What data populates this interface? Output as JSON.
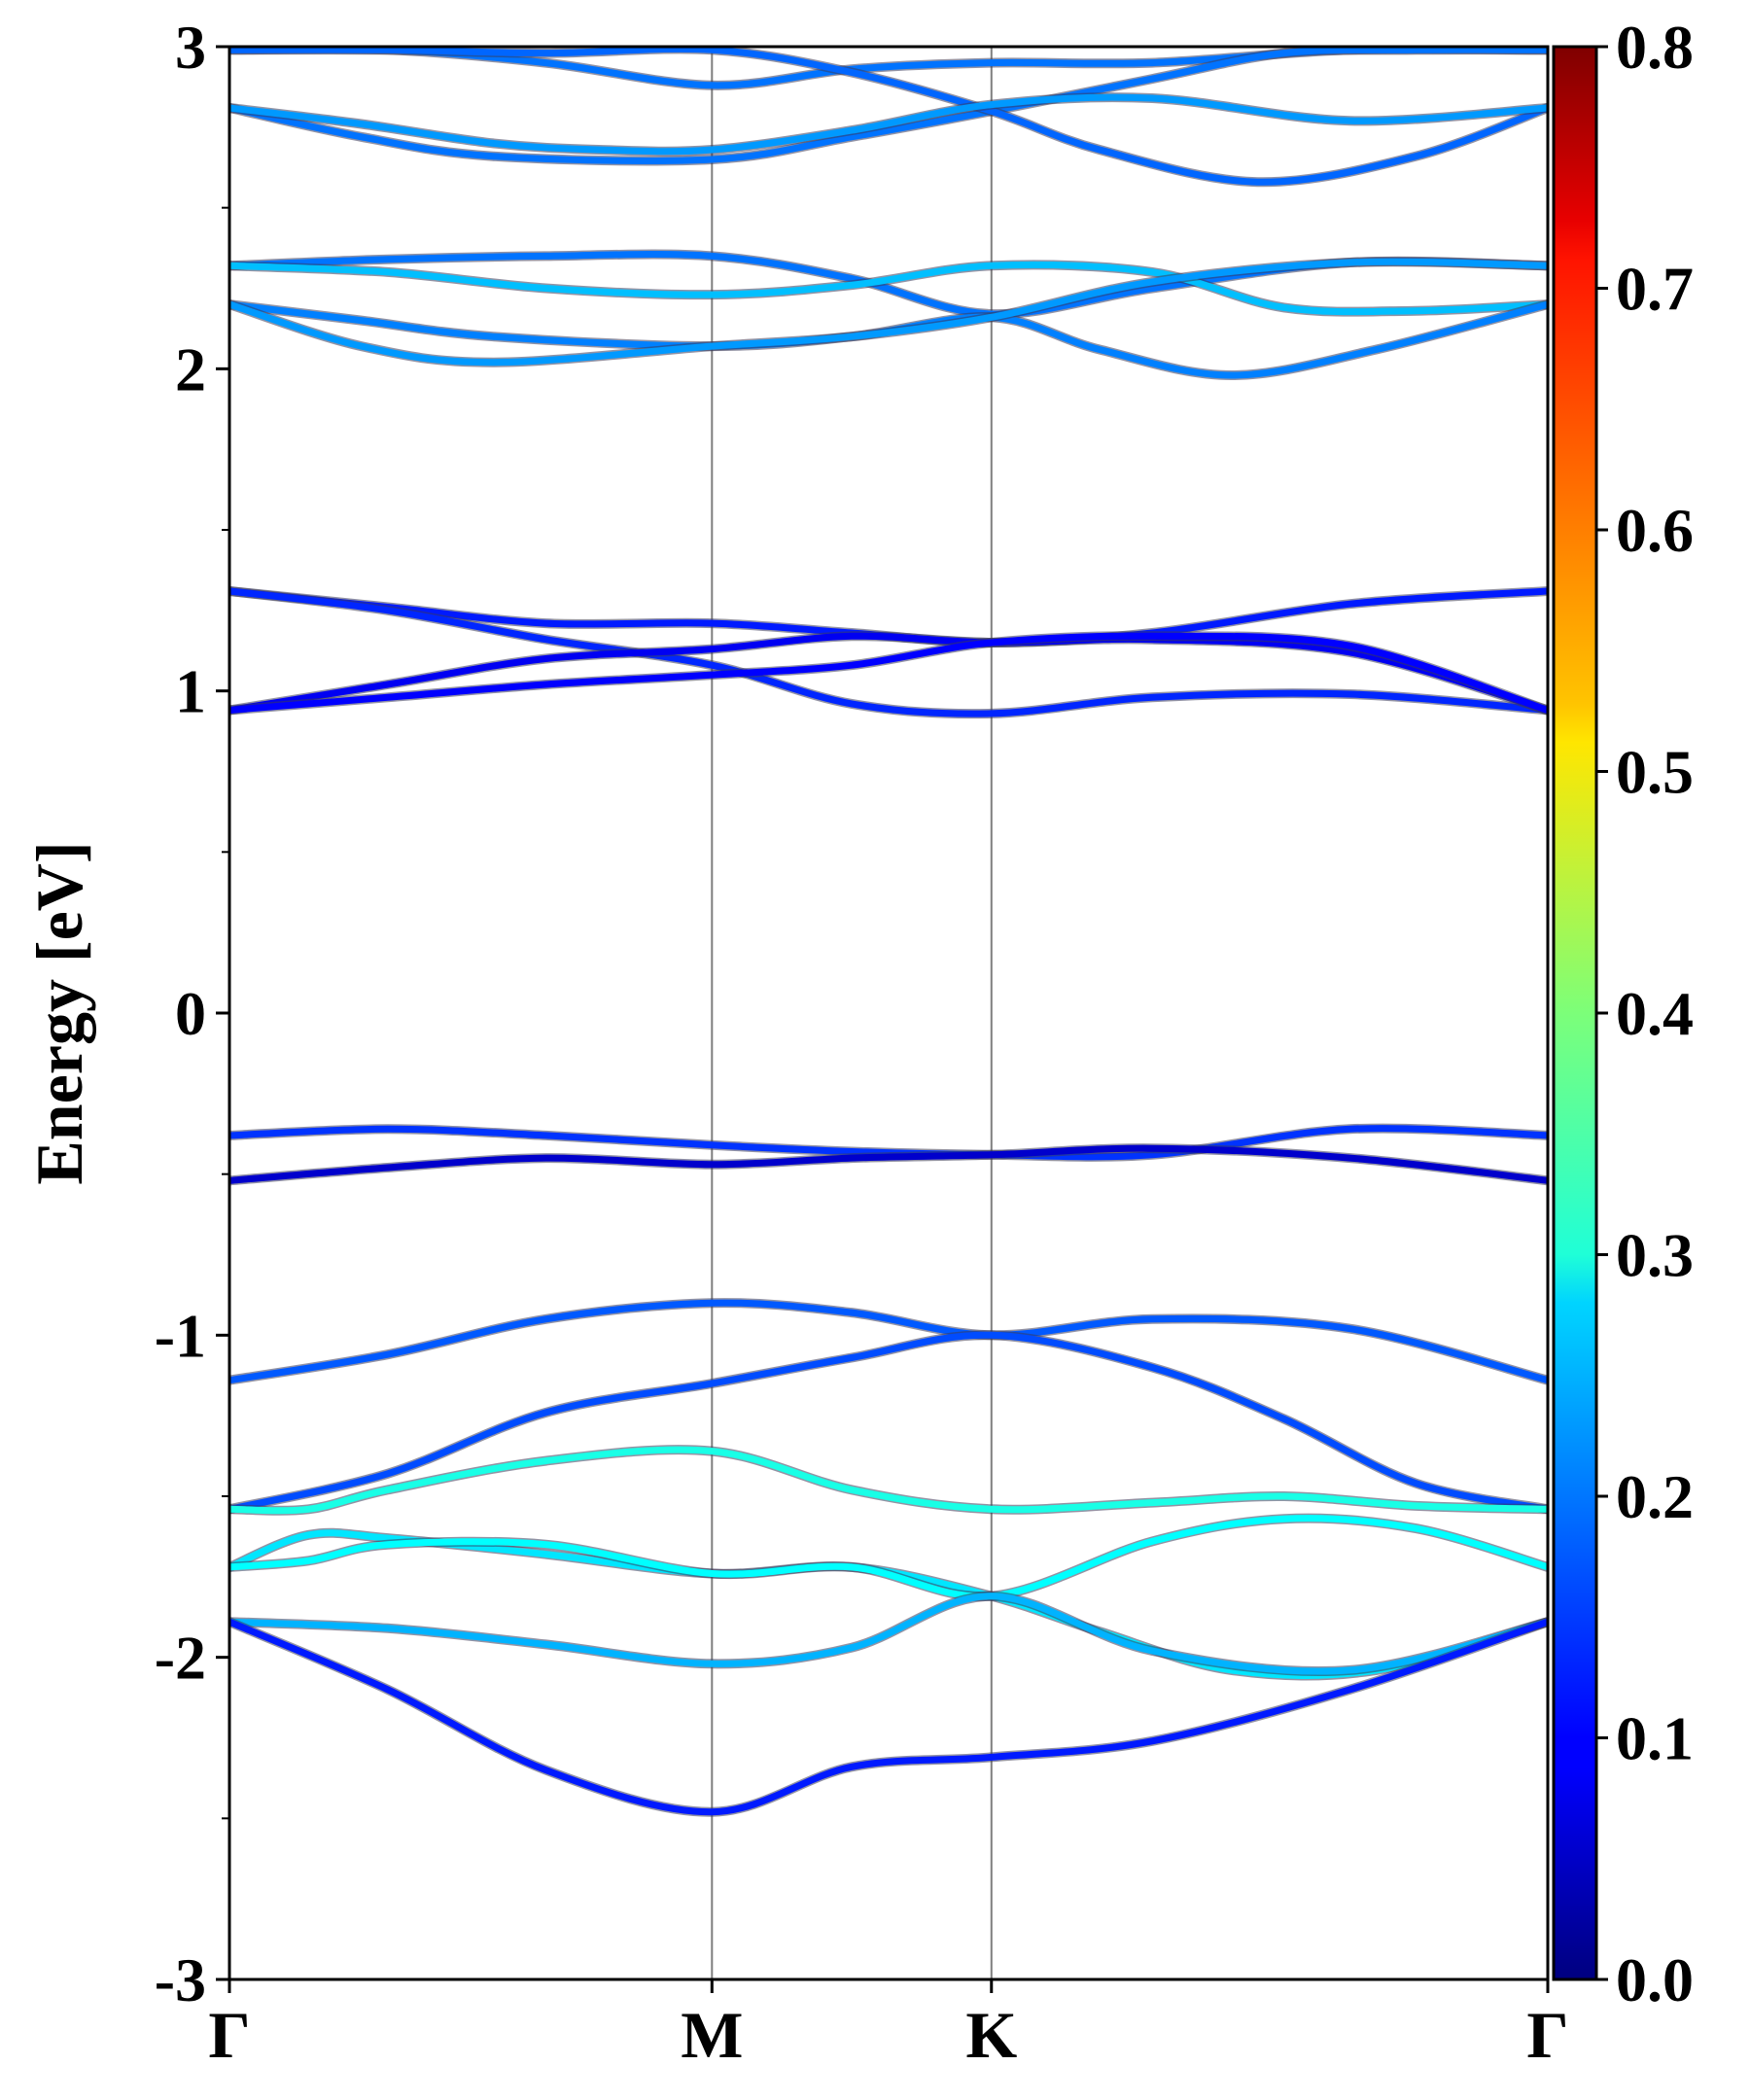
{
  "chart_data": {
    "type": "line",
    "ylabel": "Energy [eV]",
    "ylim": [
      -3,
      3
    ],
    "yticks": [
      "3",
      "2",
      "1",
      "0",
      "-1",
      "-2",
      "-3"
    ],
    "yticks_values": [
      3,
      2,
      1,
      0,
      -1,
      -2,
      -3
    ],
    "xlim": [
      0,
      1
    ],
    "high_symmetry_points": [
      {
        "label": "Γ",
        "x": 0
      },
      {
        "label": "M",
        "x": 0.366
      },
      {
        "label": "K",
        "x": 0.578
      },
      {
        "label": "Γ",
        "x": 1
      }
    ],
    "colorbar": {
      "range": [
        0.0,
        0.8
      ],
      "ticks": [
        "0.8",
        "0.7",
        "0.6",
        "0.5",
        "0.4",
        "0.3",
        "0.2",
        "0.1",
        "0.0"
      ],
      "ticks_values": [
        0.8,
        0.7,
        0.6,
        0.5,
        0.4,
        0.3,
        0.2,
        0.1,
        0.0
      ],
      "colormap": "jet"
    },
    "grid": false,
    "series": [
      {
        "x": [
          0,
          0.12,
          0.24,
          0.366,
          0.472,
          0.578,
          0.7,
          0.85,
          1
        ],
        "y": [
          2.99,
          2.99,
          2.95,
          2.88,
          2.93,
          2.95,
          2.95,
          2.99,
          2.99
        ],
        "weight": 0.19
      },
      {
        "x": [
          0,
          0.1,
          0.2,
          0.366,
          0.472,
          0.578,
          0.7,
          0.8,
          0.9,
          1
        ],
        "y": [
          2.81,
          2.72,
          2.66,
          2.65,
          2.72,
          2.8,
          2.9,
          2.98,
          2.99,
          2.99
        ],
        "weight": 0.19
      },
      {
        "x": [
          0,
          0.12,
          0.24,
          0.366,
          0.472,
          0.578,
          0.66,
          0.78,
          0.9,
          1
        ],
        "y": [
          2.99,
          2.99,
          2.98,
          2.99,
          2.92,
          2.8,
          2.68,
          2.58,
          2.66,
          2.81
        ],
        "weight": 0.18
      },
      {
        "x": [
          0,
          0.1,
          0.2,
          0.28,
          0.366,
          0.472,
          0.578,
          0.7,
          0.85,
          1
        ],
        "y": [
          2.81,
          2.76,
          2.7,
          2.68,
          2.68,
          2.74,
          2.82,
          2.84,
          2.77,
          2.81
        ],
        "weight": 0.22
      },
      {
        "x": [
          0,
          0.12,
          0.24,
          0.366,
          0.472,
          0.578,
          0.7,
          0.85,
          1
        ],
        "y": [
          2.32,
          2.34,
          2.35,
          2.35,
          2.28,
          2.17,
          2.25,
          2.33,
          2.32
        ],
        "weight": 0.19
      },
      {
        "x": [
          0,
          0.12,
          0.24,
          0.366,
          0.472,
          0.578,
          0.7,
          0.8,
          0.9,
          1
        ],
        "y": [
          2.32,
          2.3,
          2.25,
          2.23,
          2.26,
          2.32,
          2.3,
          2.19,
          2.18,
          2.2
        ],
        "weight": 0.25
      },
      {
        "x": [
          0,
          0.1,
          0.2,
          0.366,
          0.472,
          0.578,
          0.66,
          0.76,
          0.87,
          1
        ],
        "y": [
          2.2,
          2.15,
          2.1,
          2.07,
          2.1,
          2.16,
          2.06,
          1.98,
          2.06,
          2.2
        ],
        "weight": 0.2
      },
      {
        "x": [
          0,
          0.1,
          0.2,
          0.366,
          0.472,
          0.578,
          0.7,
          0.85,
          1
        ],
        "y": [
          2.2,
          2.07,
          2.02,
          2.07,
          2.1,
          2.16,
          2.27,
          2.33,
          2.32
        ],
        "weight": 0.22
      },
      {
        "x": [
          0,
          0.12,
          0.24,
          0.366,
          0.472,
          0.578,
          0.7,
          0.85,
          1
        ],
        "y": [
          1.31,
          1.26,
          1.21,
          1.21,
          1.18,
          1.15,
          1.18,
          1.27,
          1.31
        ],
        "weight": 0.12
      },
      {
        "x": [
          0,
          0.12,
          0.24,
          0.366,
          0.472,
          0.578,
          0.7,
          0.85,
          1
        ],
        "y": [
          1.31,
          1.25,
          1.16,
          1.08,
          0.96,
          0.93,
          0.98,
          0.99,
          0.94
        ],
        "weight": 0.13
      },
      {
        "x": [
          0,
          0.12,
          0.24,
          0.366,
          0.472,
          0.578,
          0.7,
          0.85,
          1
        ],
        "y": [
          0.94,
          1.02,
          1.1,
          1.13,
          1.17,
          1.15,
          1.16,
          1.12,
          0.94
        ],
        "weight": 0.09
      },
      {
        "x": [
          0,
          0.12,
          0.24,
          0.366,
          0.472,
          0.578,
          0.7,
          0.85,
          1
        ],
        "y": [
          0.94,
          0.98,
          1.02,
          1.05,
          1.08,
          1.15,
          1.17,
          1.14,
          0.94
        ],
        "weight": 0.1
      },
      {
        "x": [
          0,
          0.12,
          0.24,
          0.366,
          0.472,
          0.578,
          0.7,
          0.85,
          1
        ],
        "y": [
          -0.38,
          -0.36,
          -0.38,
          -0.41,
          -0.43,
          -0.44,
          -0.44,
          -0.36,
          -0.38
        ],
        "weight": 0.14
      },
      {
        "x": [
          0,
          0.12,
          0.24,
          0.366,
          0.472,
          0.578,
          0.7,
          0.85,
          1
        ],
        "y": [
          -0.52,
          -0.48,
          -0.45,
          -0.47,
          -0.45,
          -0.44,
          -0.42,
          -0.45,
          -0.52
        ],
        "weight": 0.06
      },
      {
        "x": [
          0,
          0.12,
          0.24,
          0.366,
          0.472,
          0.578,
          0.7,
          0.85,
          1
        ],
        "y": [
          -1.14,
          -1.06,
          -0.95,
          -0.9,
          -0.93,
          -1.0,
          -0.95,
          -0.98,
          -1.14
        ],
        "weight": 0.17
      },
      {
        "x": [
          0,
          0.12,
          0.24,
          0.366,
          0.472,
          0.578,
          0.7,
          0.8,
          0.9,
          1
        ],
        "y": [
          -1.54,
          -1.43,
          -1.24,
          -1.15,
          -1.07,
          -1.0,
          -1.1,
          -1.26,
          -1.46,
          -1.54
        ],
        "weight": 0.16
      },
      {
        "x": [
          0,
          0.06,
          0.12,
          0.24,
          0.366,
          0.472,
          0.578,
          0.7,
          0.8,
          0.9,
          1
        ],
        "y": [
          -1.54,
          -1.54,
          -1.48,
          -1.39,
          -1.36,
          -1.48,
          -1.54,
          -1.52,
          -1.5,
          -1.53,
          -1.54
        ],
        "weight": 0.32
      },
      {
        "x": [
          0,
          0.06,
          0.12,
          0.24,
          0.366,
          0.472,
          0.578,
          0.66,
          0.76,
          0.87,
          1
        ],
        "y": [
          -1.72,
          -1.62,
          -1.63,
          -1.68,
          -1.74,
          -1.72,
          -1.81,
          -1.92,
          -2.04,
          -2.04,
          -1.89
        ],
        "weight": 0.28
      },
      {
        "x": [
          0,
          0.06,
          0.12,
          0.24,
          0.366,
          0.472,
          0.578,
          0.7,
          0.8,
          0.9,
          1
        ],
        "y": [
          -1.72,
          -1.7,
          -1.65,
          -1.65,
          -1.74,
          -1.72,
          -1.81,
          -1.64,
          -1.57,
          -1.6,
          -1.72
        ],
        "weight": 0.3
      },
      {
        "x": [
          0,
          0.12,
          0.24,
          0.366,
          0.472,
          0.578,
          0.7,
          0.85,
          1
        ],
        "y": [
          -1.89,
          -1.91,
          -1.96,
          -2.02,
          -1.97,
          -1.81,
          -1.98,
          -2.04,
          -1.89
        ],
        "weight": 0.24
      },
      {
        "x": [
          0,
          0.12,
          0.24,
          0.366,
          0.472,
          0.578,
          0.7,
          0.85,
          1
        ],
        "y": [
          -1.89,
          -2.1,
          -2.35,
          -2.48,
          -2.34,
          -2.31,
          -2.26,
          -2.1,
          -1.89
        ],
        "weight": 0.12
      }
    ]
  },
  "colors": {
    "axis": "#000000",
    "kpath_line": "#7f7f7f"
  }
}
